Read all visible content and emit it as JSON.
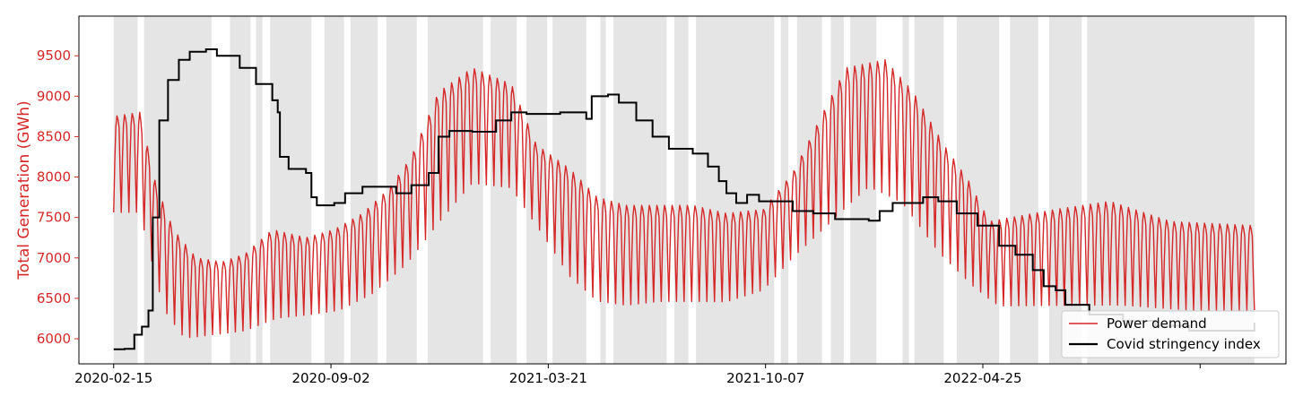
{
  "chart_data": {
    "type": "line",
    "title": "",
    "xlabel": "",
    "ylabel": "Total Generation (GWh)",
    "x_tick_labels": [
      "2020-02-15",
      "2020-09-02",
      "2021-03-21",
      "2021-10-07",
      "2022-04-25",
      ""
    ],
    "y_ticks": [
      6000,
      6500,
      7000,
      7500,
      8000,
      8500,
      9000,
      9500
    ],
    "y_tick_labels": [
      "6000",
      "6500",
      "7000",
      "7500",
      "8000",
      "8500",
      "9000",
      "9500"
    ],
    "ylim": [
      5690,
      9990
    ],
    "xlim": [
      "2020-01-14",
      "2023-01-29"
    ],
    "grid": false,
    "legend_position": "lower-right",
    "colors": {
      "demand": "#d62728",
      "stringency": "#000000",
      "ylabel": "#d62728",
      "shade": "#e5e5e5"
    },
    "series": [
      {
        "name": "Power demand",
        "kind": "weekly-oscillating",
        "x_range": [
          "2020-02-15",
          "2022-12-31"
        ],
        "weekday_peak": [
          [
            "2020-02-15",
            8750
          ],
          [
            "2020-03-10",
            8800
          ],
          [
            "2020-03-25",
            7900
          ],
          [
            "2020-04-10",
            7350
          ],
          [
            "2020-05-01",
            7000
          ],
          [
            "2020-05-25",
            6950
          ],
          [
            "2020-06-15",
            7050
          ],
          [
            "2020-07-10",
            7350
          ],
          [
            "2020-08-10",
            7250
          ],
          [
            "2020-09-05",
            7350
          ],
          [
            "2020-10-01",
            7550
          ],
          [
            "2020-10-25",
            7850
          ],
          [
            "2020-11-15",
            8250
          ],
          [
            "2020-12-10",
            9050
          ],
          [
            "2021-01-10",
            9350
          ],
          [
            "2021-02-15",
            9150
          ],
          [
            "2021-03-10",
            8400
          ],
          [
            "2021-04-10",
            8100
          ],
          [
            "2021-05-05",
            7750
          ],
          [
            "2021-06-01",
            7650
          ],
          [
            "2021-07-01",
            7650
          ],
          [
            "2021-08-01",
            7650
          ],
          [
            "2021-09-01",
            7550
          ],
          [
            "2021-10-05",
            7600
          ],
          [
            "2021-11-01",
            8050
          ],
          [
            "2021-12-01",
            8850
          ],
          [
            "2021-12-20",
            9350
          ],
          [
            "2022-01-25",
            9450
          ],
          [
            "2022-02-20",
            9050
          ],
          [
            "2022-03-20",
            8400
          ],
          [
            "2022-04-12",
            7950
          ],
          [
            "2022-05-01",
            7450
          ],
          [
            "2022-07-01",
            7600
          ],
          [
            "2022-08-20",
            7700
          ],
          [
            "2022-10-15",
            7450
          ],
          [
            "2022-12-31",
            7400
          ]
        ],
        "weekend_trough": [
          [
            "2020-02-15",
            7500
          ],
          [
            "2020-03-10",
            7500
          ],
          [
            "2020-04-01",
            6300
          ],
          [
            "2020-04-20",
            5950
          ],
          [
            "2020-05-15",
            6000
          ],
          [
            "2020-06-15",
            6050
          ],
          [
            "2020-07-15",
            6200
          ],
          [
            "2020-08-15",
            6250
          ],
          [
            "2020-09-10",
            6300
          ],
          [
            "2020-10-10",
            6500
          ],
          [
            "2020-11-10",
            6850
          ],
          [
            "2020-12-10",
            7350
          ],
          [
            "2021-01-10",
            7850
          ],
          [
            "2021-02-15",
            7800
          ],
          [
            "2021-03-15",
            7250
          ],
          [
            "2021-04-10",
            6700
          ],
          [
            "2021-05-05",
            6400
          ],
          [
            "2021-06-01",
            6350
          ],
          [
            "2021-07-01",
            6400
          ],
          [
            "2021-08-01",
            6400
          ],
          [
            "2021-09-01",
            6400
          ],
          [
            "2021-10-05",
            6550
          ],
          [
            "2021-11-01",
            6950
          ],
          [
            "2021-12-05",
            7350
          ],
          [
            "2022-01-10",
            7800
          ],
          [
            "2022-02-10",
            7600
          ],
          [
            "2022-03-15",
            7000
          ],
          [
            "2022-04-15",
            6600
          ],
          [
            "2022-05-10",
            6350
          ],
          [
            "2022-07-01",
            6350
          ],
          [
            "2022-09-01",
            6350
          ],
          [
            "2022-11-01",
            6300
          ],
          [
            "2022-12-31",
            6300
          ]
        ]
      },
      {
        "name": "Covid stringency index",
        "kind": "step",
        "points": [
          [
            "2020-02-15",
            5870
          ],
          [
            "2020-02-25",
            5875
          ],
          [
            "2020-03-05",
            6050
          ],
          [
            "2020-03-12",
            6150
          ],
          [
            "2020-03-18",
            6350
          ],
          [
            "2020-03-22",
            7500
          ],
          [
            "2020-03-28",
            8700
          ],
          [
            "2020-04-05",
            9200
          ],
          [
            "2020-04-15",
            9450
          ],
          [
            "2020-04-25",
            9550
          ],
          [
            "2020-05-10",
            9580
          ],
          [
            "2020-05-20",
            9500
          ],
          [
            "2020-06-10",
            9350
          ],
          [
            "2020-06-25",
            9150
          ],
          [
            "2020-07-10",
            8950
          ],
          [
            "2020-07-15",
            8800
          ],
          [
            "2020-07-17",
            8250
          ],
          [
            "2020-07-25",
            8100
          ],
          [
            "2020-08-10",
            8050
          ],
          [
            "2020-08-15",
            7750
          ],
          [
            "2020-08-20",
            7650
          ],
          [
            "2020-09-05",
            7680
          ],
          [
            "2020-09-15",
            7800
          ],
          [
            "2020-10-01",
            7880
          ],
          [
            "2020-11-01",
            7800
          ],
          [
            "2020-11-15",
            7900
          ],
          [
            "2020-12-01",
            8050
          ],
          [
            "2020-12-10",
            8500
          ],
          [
            "2020-12-20",
            8570
          ],
          [
            "2021-01-10",
            8560
          ],
          [
            "2021-02-01",
            8700
          ],
          [
            "2021-02-15",
            8800
          ],
          [
            "2021-03-01",
            8780
          ],
          [
            "2021-04-01",
            8800
          ],
          [
            "2021-04-25",
            8720
          ],
          [
            "2021-04-30",
            9000
          ],
          [
            "2021-05-15",
            9020
          ],
          [
            "2021-05-25",
            8920
          ],
          [
            "2021-06-10",
            8700
          ],
          [
            "2021-06-25",
            8500
          ],
          [
            "2021-07-10",
            8350
          ],
          [
            "2021-08-01",
            8290
          ],
          [
            "2021-08-15",
            8130
          ],
          [
            "2021-08-25",
            7950
          ],
          [
            "2021-09-01",
            7800
          ],
          [
            "2021-09-10",
            7680
          ],
          [
            "2021-09-20",
            7780
          ],
          [
            "2021-10-01",
            7700
          ],
          [
            "2021-11-01",
            7580
          ],
          [
            "2021-11-20",
            7550
          ],
          [
            "2021-12-10",
            7480
          ],
          [
            "2022-01-10",
            7460
          ],
          [
            "2022-01-20",
            7580
          ],
          [
            "2022-02-01",
            7680
          ],
          [
            "2022-03-01",
            7750
          ],
          [
            "2022-03-15",
            7700
          ],
          [
            "2022-04-01",
            7550
          ],
          [
            "2022-04-20",
            7400
          ],
          [
            "2022-05-10",
            7150
          ],
          [
            "2022-05-25",
            7040
          ],
          [
            "2022-06-10",
            6850
          ],
          [
            "2022-06-20",
            6650
          ],
          [
            "2022-07-01",
            6600
          ],
          [
            "2022-07-10",
            6420
          ],
          [
            "2022-08-01",
            6300
          ],
          [
            "2022-09-01",
            6220
          ],
          [
            "2022-10-01",
            6160
          ],
          [
            "2022-11-01",
            6100
          ],
          [
            "2022-12-31",
            6200
          ]
        ]
      }
    ],
    "shaded_periods": [
      [
        "2020-02-15",
        "2020-03-08"
      ],
      [
        "2020-03-14",
        "2020-05-15"
      ],
      [
        "2020-06-01",
        "2020-06-20"
      ],
      [
        "2020-06-25",
        "2020-07-01"
      ],
      [
        "2020-07-08",
        "2020-08-15"
      ],
      [
        "2020-08-27",
        "2020-09-14"
      ],
      [
        "2020-09-20",
        "2020-10-15"
      ],
      [
        "2020-10-23",
        "2020-11-20"
      ],
      [
        "2020-11-30",
        "2021-01-20"
      ],
      [
        "2021-01-27",
        "2021-02-20"
      ],
      [
        "2021-03-01",
        "2021-03-20"
      ],
      [
        "2021-03-25",
        "2021-04-25"
      ],
      [
        "2021-05-08",
        "2021-05-13"
      ],
      [
        "2021-05-20",
        "2021-07-08"
      ],
      [
        "2021-07-15",
        "2021-07-28"
      ],
      [
        "2021-08-04",
        "2021-10-15"
      ],
      [
        "2021-10-21",
        "2021-10-28"
      ],
      [
        "2021-11-05",
        "2021-11-28"
      ],
      [
        "2021-12-06",
        "2021-12-18"
      ],
      [
        "2021-12-24",
        "2022-01-17"
      ],
      [
        "2022-02-10",
        "2022-02-16"
      ],
      [
        "2022-02-21",
        "2022-03-20"
      ],
      [
        "2022-04-01",
        "2022-05-10"
      ],
      [
        "2022-05-20",
        "2022-06-15"
      ],
      [
        "2022-06-25",
        "2022-07-25"
      ],
      [
        "2022-07-30",
        "2022-12-31"
      ]
    ]
  }
}
